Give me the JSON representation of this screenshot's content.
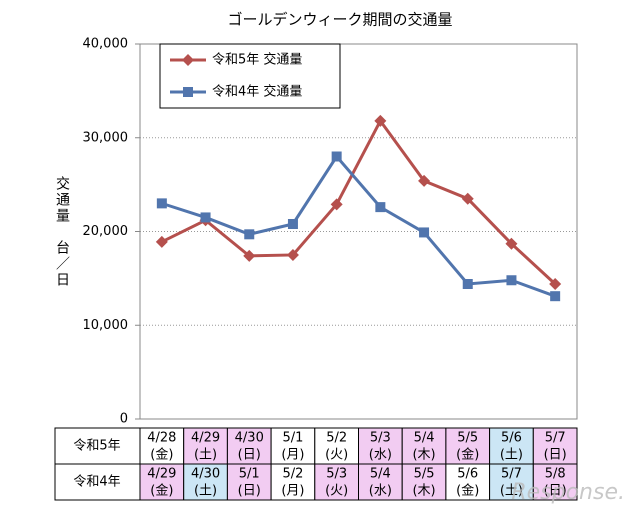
{
  "chart_data": {
    "type": "line",
    "title": "ゴールデンウィーク期間の交通量",
    "y_label": "交通量　台／日",
    "categories": [
      "4/28",
      "4/29",
      "4/30",
      "5/1",
      "5/2",
      "5/3",
      "5/4",
      "5/5",
      "5/6",
      "5/7"
    ],
    "series": [
      {
        "name": "令和5年 交通量",
        "color": "#b5504d",
        "marker": "diamond",
        "values": [
          18900,
          21200,
          17400,
          17500,
          22900,
          31800,
          25400,
          23500,
          18700,
          14400
        ]
      },
      {
        "name": "令和4年 交通量",
        "color": "#5175ad",
        "marker": "square",
        "values": [
          23000,
          21500,
          19700,
          20800,
          28000,
          22600,
          19900,
          14400,
          14800,
          13100
        ]
      }
    ],
    "ylim": [
      0,
      40000
    ],
    "yticks": [
      0,
      {
        "value": 10000,
        "label": "10,000"
      },
      {
        "value": 20000,
        "label": "20,000"
      },
      {
        "value": 30000,
        "label": "30,000"
      },
      {
        "value": 40000,
        "label": "40,000"
      }
    ],
    "grid": true,
    "legend": "upper left"
  },
  "table": {
    "rows": [
      {
        "label": "令和5年",
        "cells": [
          {
            "date": "4/28",
            "day": "(金)",
            "color": "#ffffff"
          },
          {
            "date": "4/29",
            "day": "(土)",
            "color": "#f2ccf2"
          },
          {
            "date": "4/30",
            "day": "(日)",
            "color": "#f2ccf2"
          },
          {
            "date": "5/1",
            "day": "(月)",
            "color": "#ffffff"
          },
          {
            "date": "5/2",
            "day": "(火)",
            "color": "#ffffff"
          },
          {
            "date": "5/3",
            "day": "(水)",
            "color": "#f2ccf2"
          },
          {
            "date": "5/4",
            "day": "(木)",
            "color": "#f2ccf2"
          },
          {
            "date": "5/5",
            "day": "(金)",
            "color": "#f2ccf2"
          },
          {
            "date": "5/6",
            "day": "(土)",
            "color": "#cce6f5"
          },
          {
            "date": "5/7",
            "day": "(日)",
            "color": "#f2ccf2"
          }
        ]
      },
      {
        "label": "令和4年",
        "cells": [
          {
            "date": "4/29",
            "day": "(金)",
            "color": "#f2ccf2"
          },
          {
            "date": "4/30",
            "day": "(土)",
            "color": "#cce6f5"
          },
          {
            "date": "5/1",
            "day": "(日)",
            "color": "#f2ccf2"
          },
          {
            "date": "5/2",
            "day": "(月)",
            "color": "#ffffff"
          },
          {
            "date": "5/3",
            "day": "(火)",
            "color": "#f2ccf2"
          },
          {
            "date": "5/4",
            "day": "(水)",
            "color": "#f2ccf2"
          },
          {
            "date": "5/5",
            "day": "(木)",
            "color": "#f2ccf2"
          },
          {
            "date": "5/6",
            "day": "(金)",
            "color": "#ffffff"
          },
          {
            "date": "5/7",
            "day": "(土)",
            "color": "#cce6f5"
          },
          {
            "date": "5/8",
            "day": "(日)",
            "color": "#f2ccf2"
          }
        ]
      }
    ]
  },
  "watermark": "Response."
}
